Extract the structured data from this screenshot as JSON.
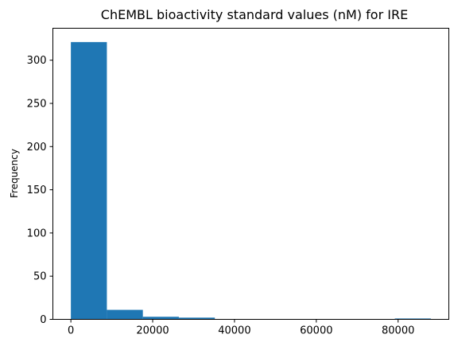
{
  "chart_data": {
    "type": "bar",
    "title": "ChEMBL bioactivity standard values (nM) for IRE",
    "xlabel": "",
    "ylabel": "Frequency",
    "bins": [
      {
        "start": 0,
        "end": 8800,
        "count": 321
      },
      {
        "start": 8800,
        "end": 17600,
        "count": 11
      },
      {
        "start": 17600,
        "end": 26400,
        "count": 3
      },
      {
        "start": 26400,
        "end": 35200,
        "count": 2
      },
      {
        "start": 35200,
        "end": 44000,
        "count": 0
      },
      {
        "start": 44000,
        "end": 52800,
        "count": 0
      },
      {
        "start": 52800,
        "end": 61600,
        "count": 0
      },
      {
        "start": 61600,
        "end": 70400,
        "count": 0
      },
      {
        "start": 70400,
        "end": 79200,
        "count": 0
      },
      {
        "start": 79200,
        "end": 88000,
        "count": 1
      }
    ],
    "xlim": [
      -4400,
      92400
    ],
    "ylim": [
      0,
      337
    ],
    "xticks": [
      0,
      20000,
      40000,
      60000,
      80000
    ],
    "yticks": [
      0,
      50,
      100,
      150,
      200,
      250,
      300
    ],
    "bar_color": "#1f77b4",
    "grid": false,
    "legend": "none"
  }
}
